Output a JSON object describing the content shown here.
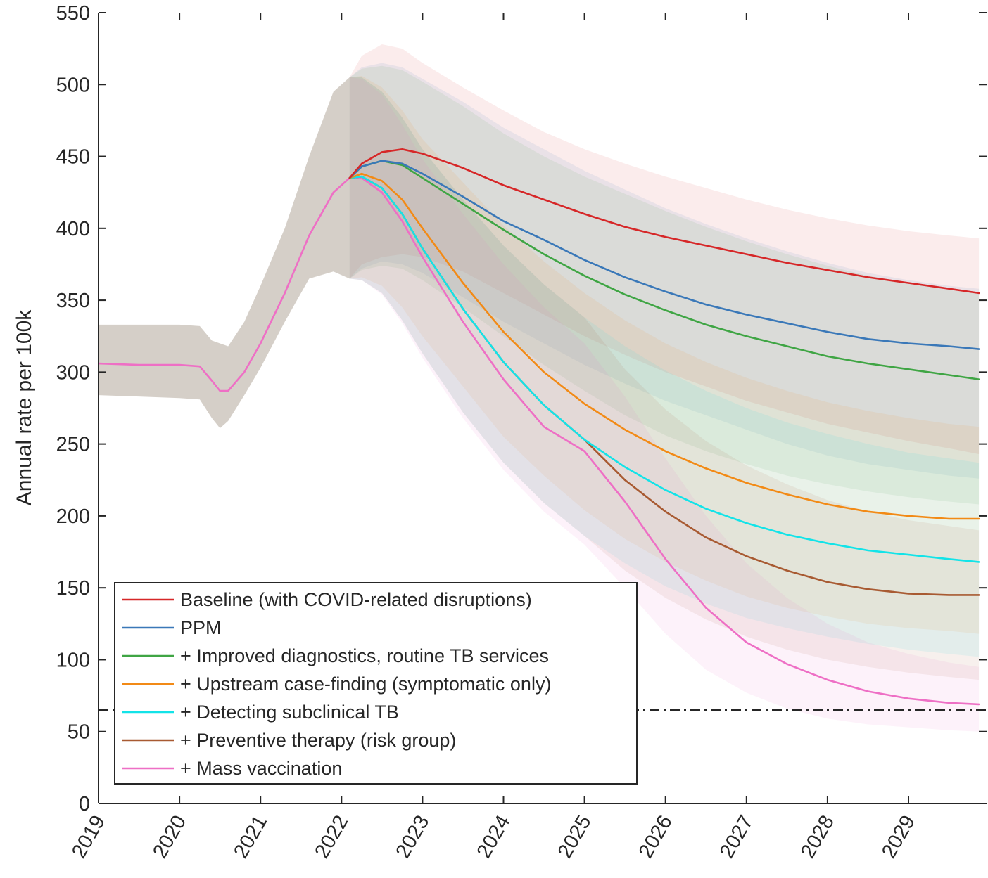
{
  "chart_data": {
    "type": "line",
    "title": "",
    "xlabel": "",
    "ylabel": "Annual rate per 100k",
    "xlim": [
      2019,
      2029.87
    ],
    "ylim": [
      0,
      550
    ],
    "x_ticks": [
      "2019",
      "2020",
      "2021",
      "2022",
      "2023",
      "2024",
      "2025",
      "2026",
      "2027",
      "2028",
      "2029"
    ],
    "y_ticks": [
      "0",
      "50",
      "100",
      "150",
      "200",
      "250",
      "300",
      "350",
      "400",
      "450",
      "500",
      "550"
    ],
    "grid": false,
    "legend_position": "bottom-left",
    "reference_line": {
      "y": 65,
      "style": "dash-dot",
      "color": "#262626"
    },
    "history": {
      "x": [
        2019.0,
        2019.5,
        2020.0,
        2020.25,
        2020.4,
        2020.5,
        2020.6,
        2020.8,
        2021.0,
        2021.3,
        2021.6,
        2021.9,
        2022.1
      ],
      "y": [
        306,
        305,
        305,
        304,
        294,
        287,
        287,
        300,
        320,
        355,
        395,
        425,
        435
      ],
      "lower": [
        284,
        283,
        282,
        281,
        268,
        261,
        266,
        284,
        303,
        335,
        365,
        370,
        365
      ],
      "upper": [
        333,
        333,
        333,
        332,
        322,
        320,
        318,
        335,
        360,
        400,
        450,
        495,
        505
      ],
      "band_color": "#d5cfc8"
    },
    "x": [
      2022.1,
      2022.25,
      2022.5,
      2022.75,
      2023.0,
      2023.5,
      2024.0,
      2024.5,
      2025.0,
      2025.5,
      2026.0,
      2026.5,
      2027.0,
      2027.5,
      2028.0,
      2028.5,
      2029.0,
      2029.5,
      2029.87
    ],
    "series": [
      {
        "name": "Baseline (with COVID-related disruptions)",
        "color": "#d62728",
        "values": [
          435,
          445,
          453,
          455,
          452,
          442,
          430,
          420,
          410,
          401,
          394,
          388,
          382,
          376,
          371,
          366,
          362,
          358,
          355
        ],
        "lower": [
          365,
          375,
          380,
          382,
          380,
          370,
          355,
          340,
          325,
          312,
          300,
          290,
          280,
          272,
          264,
          258,
          252,
          247,
          243
        ],
        "upper": [
          505,
          520,
          528,
          525,
          515,
          498,
          482,
          467,
          455,
          445,
          436,
          428,
          420,
          413,
          407,
          402,
          398,
          395,
          393
        ]
      },
      {
        "name": "PPM",
        "color": "#3a78b8",
        "values": [
          435,
          443,
          447,
          445,
          438,
          422,
          405,
          392,
          378,
          366,
          356,
          347,
          340,
          334,
          328,
          323,
          320,
          318,
          316
        ],
        "lower": [
          365,
          372,
          377,
          375,
          369,
          352,
          335,
          320,
          305,
          292,
          280,
          270,
          260,
          250,
          242,
          236,
          232,
          228,
          226
        ],
        "upper": [
          505,
          512,
          515,
          512,
          504,
          488,
          470,
          455,
          440,
          427,
          414,
          403,
          393,
          384,
          376,
          369,
          364,
          360,
          358
        ]
      },
      {
        "name": "+ Improved diagnostics, routine TB services",
        "color": "#3fa544",
        "values": [
          435,
          443,
          447,
          444,
          435,
          417,
          399,
          382,
          367,
          354,
          343,
          333,
          325,
          318,
          311,
          306,
          302,
          298,
          295
        ],
        "lower": [
          365,
          371,
          374,
          372,
          364,
          345,
          325,
          305,
          287,
          270,
          256,
          245,
          236,
          228,
          222,
          217,
          213,
          210,
          208
        ],
        "upper": [
          505,
          511,
          513,
          510,
          502,
          485,
          466,
          450,
          436,
          424,
          412,
          401,
          391,
          382,
          374,
          367,
          362,
          357,
          355
        ]
      },
      {
        "name": "+ Upstream case-finding (symptomatic only)",
        "color": "#f28a16",
        "values": [
          435,
          438,
          433,
          420,
          400,
          362,
          328,
          300,
          278,
          260,
          245,
          233,
          223,
          215,
          208,
          203,
          200,
          198,
          198
        ],
        "lower": [
          365,
          366,
          360,
          345,
          325,
          290,
          255,
          228,
          204,
          184,
          168,
          155,
          144,
          136,
          130,
          125,
          122,
          120,
          118
        ],
        "upper": [
          505,
          506,
          498,
          482,
          462,
          432,
          402,
          377,
          355,
          336,
          320,
          307,
          296,
          287,
          279,
          273,
          268,
          264,
          262
        ]
      },
      {
        "name": "+ Detecting subclinical TB",
        "color": "#13e3e8",
        "values": [
          435,
          436,
          428,
          410,
          386,
          344,
          307,
          277,
          253,
          234,
          218,
          205,
          195,
          187,
          181,
          176,
          173,
          170,
          168
        ],
        "lower": [
          365,
          364,
          355,
          336,
          313,
          272,
          237,
          209,
          186,
          167,
          151,
          139,
          129,
          122,
          116,
          111,
          107,
          104,
          102
        ],
        "upper": [
          505,
          505,
          495,
          477,
          455,
          420,
          388,
          361,
          338,
          318,
          301,
          287,
          275,
          265,
          257,
          250,
          244,
          240,
          237
        ]
      },
      {
        "name": "+ Preventive therapy (risk group)",
        "color": "#a85a32",
        "values": [
          435,
          436,
          428,
          410,
          386,
          344,
          307,
          277,
          253,
          225,
          203,
          185,
          172,
          162,
          154,
          149,
          146,
          145,
          145
        ],
        "lower": [
          365,
          364,
          355,
          336,
          313,
          272,
          237,
          209,
          186,
          162,
          143,
          128,
          116,
          107,
          100,
          95,
          91,
          88,
          86
        ],
        "upper": [
          505,
          505,
          495,
          477,
          455,
          420,
          388,
          361,
          338,
          302,
          274,
          252,
          235,
          222,
          211,
          203,
          197,
          193,
          190
        ]
      },
      {
        "name": "+ Mass vaccination",
        "color": "#ee6fc5",
        "values": [
          435,
          435,
          425,
          405,
          380,
          335,
          295,
          262,
          245,
          210,
          170,
          136,
          112,
          97,
          86,
          78,
          73,
          70,
          69
        ],
        "lower": [
          365,
          364,
          354,
          334,
          310,
          268,
          232,
          203,
          180,
          150,
          118,
          93,
          77,
          66,
          59,
          55,
          53,
          51,
          50
        ],
        "upper": [
          505,
          504,
          493,
          472,
          448,
          410,
          375,
          345,
          320,
          283,
          240,
          200,
          167,
          143,
          125,
          112,
          104,
          98,
          95
        ]
      }
    ]
  }
}
